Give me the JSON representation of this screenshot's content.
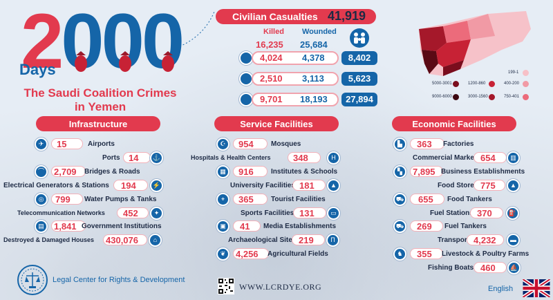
{
  "title": {
    "number": "2000",
    "unit": "Days",
    "subtitle_line1": "The Saudi Coalition Crimes",
    "subtitle_line2": "in Yemen"
  },
  "casualties": {
    "heading": "Civilian Casualties",
    "total": "41,919",
    "killed_label": "Killed",
    "wounded_label": "Wounded",
    "killed_total": "16,235",
    "wounded_total": "25,684",
    "rows": [
      {
        "icon": "man-icon",
        "killed": "4,024",
        "wounded": "4,378",
        "total": "8,402"
      },
      {
        "icon": "woman-icon",
        "killed": "2,510",
        "wounded": "3,113",
        "total": "5,623"
      },
      {
        "icon": "child-icon",
        "killed": "9,701",
        "wounded": "18,193",
        "total": "27,894"
      }
    ]
  },
  "map_legend": [
    {
      "label": "199-1",
      "color": "#f7c0c7"
    },
    {
      "label": "5000-3001",
      "color": "#7a0d1d"
    },
    {
      "label": "1200-860",
      "color": "#c72235"
    },
    {
      "label": "400-200",
      "color": "#f19aa5"
    },
    {
      "label": "9000-6000",
      "color": "#3d0810"
    },
    {
      "label": "3000-1560",
      "color": "#a5182a"
    },
    {
      "label": "750-401",
      "color": "#ec6b7b"
    }
  ],
  "sections": {
    "infrastructure": {
      "heading": "Infrastructure",
      "rows": [
        {
          "value": "15",
          "label": "Airports",
          "icon": "airplane-icon"
        },
        {
          "value": "14",
          "label": "Ports",
          "icon": "anchor-icon"
        },
        {
          "value": "2,709",
          "label": "Bridges & Roads",
          "icon": "bridge-icon"
        },
        {
          "value": "194",
          "label": "Electrical Generators & Stations",
          "icon": "generator-icon"
        },
        {
          "value": "799",
          "label": "Water Pumps & Tanks",
          "icon": "water-pump-icon"
        },
        {
          "value": "452",
          "label": "Telecommunication Networks",
          "icon": "satellite-icon"
        },
        {
          "value": "1,841",
          "label": "Government Institutions",
          "icon": "government-building-icon"
        },
        {
          "value": "430,076",
          "label": "Destroyed & Damaged Houses",
          "icon": "house-icon"
        }
      ]
    },
    "service": {
      "heading": "Service Facilities",
      "rows": [
        {
          "value": "954",
          "label": "Mosques",
          "icon": "mosque-icon"
        },
        {
          "value": "348",
          "label": "Hospitals & Health Centers",
          "icon": "hospital-icon"
        },
        {
          "value": "916",
          "label": "Institutes & Schools",
          "icon": "school-icon"
        },
        {
          "value": "181",
          "label": "University Facilities",
          "icon": "graduation-cap-icon"
        },
        {
          "value": "365",
          "label": "Tourist Facilities",
          "icon": "tourist-icon"
        },
        {
          "value": "131",
          "label": "Sports Facilities",
          "icon": "stadium-icon"
        },
        {
          "value": "41",
          "label": "Media Establishments",
          "icon": "tv-icon"
        },
        {
          "value": "219",
          "label": "Archaeological Sites",
          "icon": "archaeological-site-icon"
        },
        {
          "value": "4,256",
          "label": "Agricultural Fields",
          "icon": "plant-icon"
        }
      ]
    },
    "economic": {
      "heading": "Economic Facilities",
      "rows": [
        {
          "value": "363",
          "label": "Factories",
          "icon": "factory-icon"
        },
        {
          "value": "654",
          "label": "Commercial Markets",
          "icon": "market-icon"
        },
        {
          "value": "7,895",
          "label": "Business Establishments",
          "icon": "shop-icon"
        },
        {
          "value": "775",
          "label": "Food Stores",
          "icon": "food-store-icon"
        },
        {
          "value": "655",
          "label": "Food Tankers",
          "icon": "food-truck-icon"
        },
        {
          "value": "370",
          "label": "Fuel Stations",
          "icon": "fuel-station-icon"
        },
        {
          "value": "269",
          "label": "Fuel Tankers",
          "icon": "fuel-tanker-icon"
        },
        {
          "value": "4,232",
          "label": "Transports",
          "icon": "bus-icon"
        },
        {
          "value": "355",
          "label": "Livestock & Poultry Farms",
          "icon": "livestock-icon"
        },
        {
          "value": "460",
          "label": "Fishing Boats",
          "icon": "boat-icon"
        }
      ]
    }
  },
  "footer": {
    "organization": "Legal Center for Rights & Development",
    "website": "WWW.LCRDYE.ORG",
    "language": "English"
  },
  "colors": {
    "accent_red": "#e23a4e",
    "accent_blue": "#1565a8",
    "text_dark": "#1d2a44",
    "background": "#e6edf5"
  }
}
